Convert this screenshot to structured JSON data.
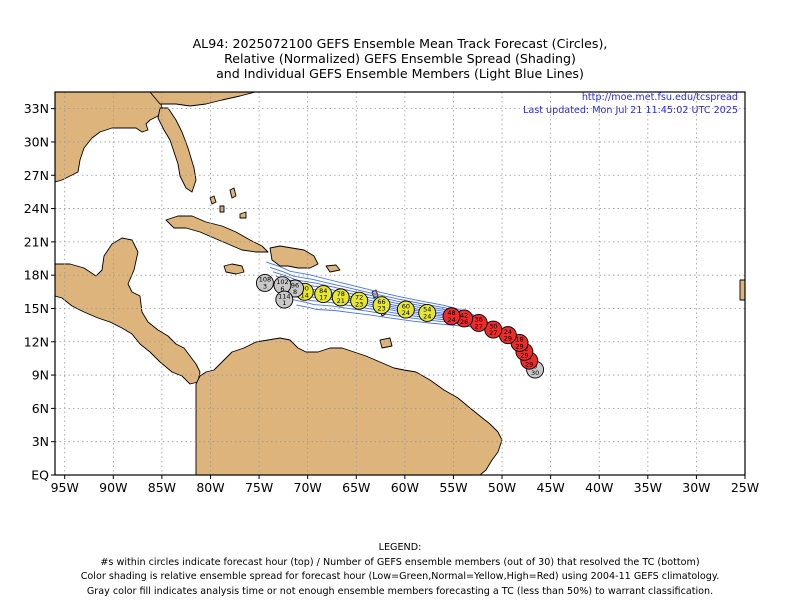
{
  "title": {
    "line1": "AL94: 2025072100 GEFS Ensemble Mean Track Forecast (Circles),",
    "line2": "Relative (Normalized) GEFS Ensemble Spread (Shading)",
    "line3": "and Individual GEFS Ensemble Members (Light Blue Lines)"
  },
  "source_url": "http://moe.met.fsu.edu/tcspread",
  "last_updated": "Last updated: Mon Jul 21 11:45:02 UTC 2025",
  "axes": {
    "lon_ticks": [
      "95W",
      "90W",
      "85W",
      "80W",
      "75W",
      "70W",
      "65W",
      "60W",
      "55W",
      "50W",
      "45W",
      "40W",
      "35W",
      "30W",
      "25W"
    ],
    "lat_ticks": [
      "EQ",
      "3N",
      "6N",
      "9N",
      "12N",
      "15N",
      "18N",
      "21N",
      "24N",
      "27N",
      "30N",
      "33N"
    ],
    "lon_range": [
      -96,
      -25
    ],
    "lat_range": [
      0,
      34.5
    ]
  },
  "colors": {
    "land": "#dcb47c",
    "ocean": "#ffffff",
    "grid": "#999999",
    "member_tracks": "#4a72e8",
    "low_spread": "#22bb22",
    "normal_spread": "#e6e632",
    "high_spread": "#ee2a2a",
    "analysis": "#c8c8c8",
    "link_text": "#2a2ae6"
  },
  "mean_track": [
    {
      "lon": -46.6,
      "lat": 9.5,
      "hour": "0",
      "members": "30",
      "class": "gray"
    },
    {
      "lon": -47.2,
      "lat": 10.3,
      "hour": "6",
      "members": "29",
      "class": "red"
    },
    {
      "lon": -47.7,
      "lat": 11.1,
      "hour": "12",
      "members": "29",
      "class": "red"
    },
    {
      "lon": -48.2,
      "lat": 11.9,
      "hour": "18",
      "members": "29",
      "class": "red"
    },
    {
      "lon": -49.4,
      "lat": 12.6,
      "hour": "24",
      "members": "29",
      "class": "red"
    },
    {
      "lon": -50.9,
      "lat": 13.1,
      "hour": "30",
      "members": "27",
      "class": "red"
    },
    {
      "lon": -52.4,
      "lat": 13.7,
      "hour": "36",
      "members": "27",
      "class": "red"
    },
    {
      "lon": -53.9,
      "lat": 14.1,
      "hour": "42",
      "members": "26",
      "class": "red"
    },
    {
      "lon": -55.2,
      "lat": 14.3,
      "hour": "48",
      "members": "24",
      "class": "red"
    },
    {
      "lon": -57.7,
      "lat": 14.6,
      "hour": "54",
      "members": "24",
      "class": "yellow"
    },
    {
      "lon": -59.9,
      "lat": 14.9,
      "hour": "60",
      "members": "24",
      "class": "yellow"
    },
    {
      "lon": -62.4,
      "lat": 15.3,
      "hour": "66",
      "members": "23",
      "class": "yellow"
    },
    {
      "lon": -64.7,
      "lat": 15.7,
      "hour": "72",
      "members": "23",
      "class": "yellow"
    },
    {
      "lon": -66.6,
      "lat": 16.0,
      "hour": "78",
      "members": "21",
      "class": "yellow"
    },
    {
      "lon": -68.4,
      "lat": 16.3,
      "hour": "84",
      "members": "17",
      "class": "yellow"
    },
    {
      "lon": -70.3,
      "lat": 16.5,
      "hour": "90",
      "members": "14",
      "class": "yellow"
    },
    {
      "lon": -71.3,
      "lat": 16.8,
      "hour": "96",
      "members": "8",
      "class": "gray"
    },
    {
      "lon": -72.6,
      "lat": 17.1,
      "hour": "102",
      "members": "6",
      "class": "gray"
    },
    {
      "lon": -72.4,
      "lat": 15.8,
      "hour": "114",
      "members": "1",
      "class": "gray"
    },
    {
      "lon": -74.4,
      "lat": 17.3,
      "hour": "108",
      "members": "3",
      "class": "gray"
    }
  ],
  "legend": {
    "heading": "LEGEND:",
    "line1": "#s within circles indicate forecast hour (top) / Number of GEFS ensemble members (out of 30) that resolved the TC (bottom)",
    "line2": "Color shading is relative ensemble spread for forecast hour (Low=Green,Normal=Yellow,High=Red) using 2004-11 GEFS climatology.",
    "line3": "Gray color fill indicates analysis time or not enough ensemble members forecasting a TC (less than 50%) to warrant classification."
  }
}
